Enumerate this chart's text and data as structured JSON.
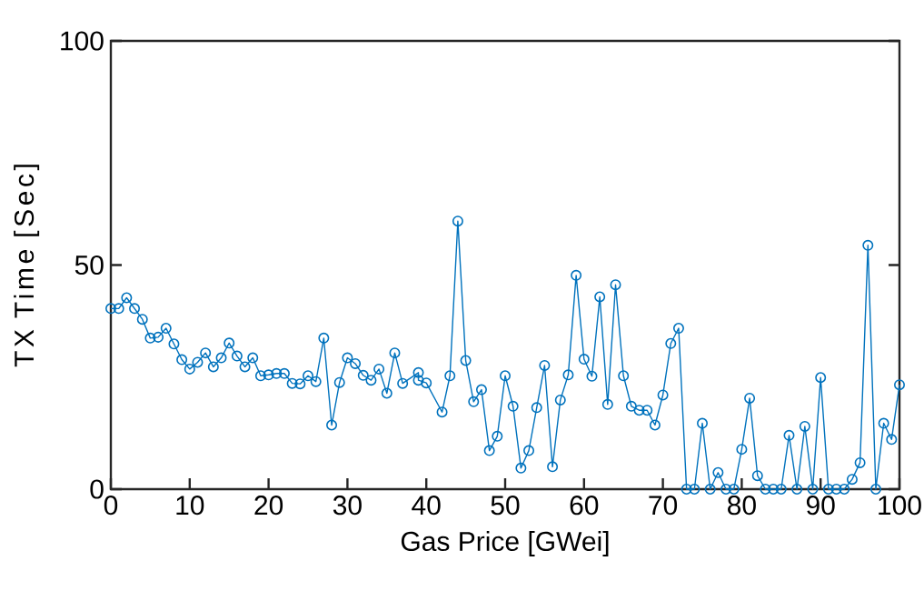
{
  "chart_data": {
    "type": "line",
    "xlabel": "Gas Price [GWei]",
    "ylabel": "TX Time [Sec]",
    "xlim": [
      0,
      100
    ],
    "ylim": [
      0,
      100
    ],
    "xticks": [
      0,
      10,
      20,
      30,
      40,
      50,
      60,
      70,
      80,
      90,
      100
    ],
    "yticks": [
      0,
      50,
      100
    ],
    "grid": false,
    "marker": "circle",
    "line_style": "solid",
    "series": [
      {
        "color": "#0072bd",
        "x": [
          0,
          1,
          2,
          3,
          4,
          5,
          6,
          7,
          8,
          9,
          10,
          11,
          12,
          13,
          14,
          15,
          16,
          17,
          18,
          19,
          20,
          21,
          22,
          23,
          24,
          25,
          26,
          27,
          28,
          29,
          30,
          31,
          32,
          33,
          34,
          35,
          36,
          37,
          39,
          39,
          40,
          42,
          43,
          44,
          45,
          46,
          47,
          48,
          49,
          50,
          51,
          52,
          53,
          54,
          55,
          56,
          57,
          58,
          59,
          60,
          61,
          62,
          63,
          64,
          65,
          66,
          67,
          68,
          69,
          70,
          71,
          72,
          73,
          74,
          75,
          76,
          77,
          78,
          79,
          80,
          81,
          82,
          83,
          84,
          85,
          86,
          87,
          88,
          89,
          90,
          91,
          92,
          93,
          94,
          95,
          96,
          97,
          98,
          99,
          100
        ],
        "values": [
          40.3,
          40.3,
          42.7,
          40.3,
          37.9,
          33.7,
          33.9,
          35.9,
          32.4,
          28.9,
          26.8,
          28.3,
          30.4,
          27.3,
          29.3,
          32.6,
          29.7,
          27.3,
          29.3,
          25.3,
          25.5,
          25.8,
          25.8,
          23.6,
          23.5,
          25.3,
          24.0,
          33.7,
          14.3,
          23.8,
          29.3,
          28.0,
          25.4,
          24.3,
          26.8,
          21.4,
          30.4,
          23.6,
          26.0,
          24.3,
          23.7,
          17.2,
          25.3,
          59.8,
          28.7,
          19.5,
          22.2,
          8.6,
          11.8,
          25.3,
          18.5,
          4.7,
          8.6,
          18.2,
          27.6,
          5.0,
          19.9,
          25.5,
          47.7,
          29.0,
          25.2,
          42.9,
          18.9,
          45.6,
          25.3,
          18.5,
          17.6,
          17.6,
          14.3,
          21.0,
          32.5,
          35.9,
          0,
          0,
          14.7,
          0,
          3.7,
          0,
          0,
          8.9,
          20.3,
          3.0,
          0,
          0,
          0,
          12.0,
          0,
          14.0,
          0,
          24.9,
          0,
          0,
          0,
          2.2,
          5.9,
          54.4,
          0,
          14.7,
          11.1,
          23.3
        ]
      }
    ]
  }
}
